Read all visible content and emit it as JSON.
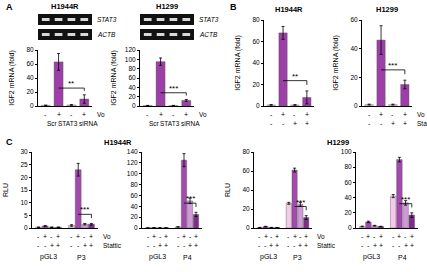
{
  "panel_labels": [
    "A",
    "B",
    "C"
  ],
  "chart_data": [
    {
      "panel": "A",
      "type": "bar",
      "title": "H1944R",
      "y_label": "IGF2 mRNA (fold)",
      "gel_labels": [
        "STAT3",
        "ACTB"
      ],
      "categories": [
        null,
        null,
        null,
        null
      ],
      "values": [
        1,
        63,
        1.5,
        10
      ],
      "errors": [
        0.3,
        12,
        0.5,
        6
      ],
      "colors": [
        "#f3d4ee",
        "#9c3fa6",
        "#f3d4ee",
        "#9c3fa6"
      ],
      "ylim": [
        0,
        80
      ],
      "yticks": [
        0,
        20,
        40,
        60,
        80
      ],
      "conditions": [
        {
          "label": "Vo",
          "values": [
            "-",
            "+",
            "-",
            "+"
          ]
        }
      ],
      "group_labels": [
        {
          "label": "Scr",
          "bars": [
            0,
            1
          ]
        },
        {
          "label": "STAT3 siRNA",
          "bars": [
            2,
            3
          ]
        }
      ],
      "significance": [
        {
          "bars": [
            1,
            3
          ],
          "label": "**"
        }
      ]
    },
    {
      "panel": "A",
      "type": "bar",
      "title": "H1299",
      "y_label": "IGF2 mRNA (fold)",
      "gel_labels": [
        "STAT3",
        "ACTB"
      ],
      "categories": [
        null,
        null,
        null,
        null
      ],
      "values": [
        1,
        95,
        1,
        12
      ],
      "errors": [
        0.3,
        8,
        0.3,
        2
      ],
      "colors": [
        "#f3d4ee",
        "#9c3fa6",
        "#f3d4ee",
        "#9c3fa6"
      ],
      "ylim": [
        0,
        120
      ],
      "yticks": [
        0,
        20,
        40,
        60,
        80,
        100,
        120
      ],
      "conditions": [
        {
          "label": "Vo",
          "values": [
            "-",
            "+",
            "-",
            "+"
          ]
        }
      ],
      "group_labels": [
        {
          "label": "Scr",
          "bars": [
            0,
            1
          ]
        },
        {
          "label": "STAT3 siRNA",
          "bars": [
            2,
            3
          ]
        }
      ],
      "significance": [
        {
          "bars": [
            1,
            3
          ],
          "label": "***"
        }
      ]
    },
    {
      "panel": "B",
      "type": "bar",
      "title": "H1944R",
      "y_label": "IGF2 mRNA (fold)",
      "categories": [
        null,
        null,
        null,
        null
      ],
      "values": [
        1,
        68,
        1,
        8
      ],
      "errors": [
        0.3,
        6,
        0.3,
        6
      ],
      "colors": [
        "#f3d4ee",
        "#9c3fa6",
        "#f3d4ee",
        "#9c3fa6"
      ],
      "ylim": [
        0,
        80
      ],
      "yticks": [
        0,
        20,
        40,
        60,
        80
      ],
      "conditions": [
        {
          "values": [
            "-",
            "+",
            "-",
            "+"
          ]
        },
        {
          "values": [
            "-",
            "-",
            "+",
            "+"
          ]
        }
      ],
      "significance": [
        {
          "bars": [
            1,
            3
          ],
          "label": "**"
        }
      ]
    },
    {
      "panel": "B",
      "type": "bar",
      "title": "H1299",
      "y_label": "IGF2 mRNA (fold)",
      "categories": [
        null,
        null,
        null,
        null
      ],
      "values": [
        1,
        46,
        1,
        15
      ],
      "errors": [
        0.3,
        10,
        0.3,
        3
      ],
      "colors": [
        "#f3d4ee",
        "#9c3fa6",
        "#f3d4ee",
        "#9c3fa6"
      ],
      "ylim": [
        0,
        60
      ],
      "yticks": [
        0,
        20,
        40,
        60
      ],
      "conditions": [
        {
          "label": "Vo",
          "values": [
            "-",
            "+",
            "-",
            "+"
          ]
        },
        {
          "label": "Stattic",
          "values": [
            "-",
            "-",
            "+",
            "+"
          ]
        }
      ],
      "significance": [
        {
          "bars": [
            1,
            3
          ],
          "label": "***"
        }
      ]
    },
    {
      "panel": "C",
      "type": "bar",
      "title": "H1944R",
      "y_label": "RLU",
      "categories": [
        "pGL3",
        "P3"
      ],
      "series": [
        {
          "color": "#f4c9ea",
          "values": [
            0.3,
            1
          ],
          "errors": [
            0.1,
            0.3
          ]
        },
        {
          "color": "#a24aae",
          "values": [
            0.8,
            23
          ],
          "errors": [
            0.2,
            2.5
          ]
        },
        {
          "color": "#cf9bd6",
          "values": [
            0.3,
            1.5
          ],
          "errors": [
            0.1,
            0.3
          ]
        },
        {
          "color": "#7d2e8a",
          "values": [
            0.3,
            1.5
          ],
          "errors": [
            0.1,
            0.3
          ]
        }
      ],
      "ylim": [
        0,
        30
      ],
      "yticks": [
        0,
        5,
        10,
        15,
        20,
        25,
        30
      ],
      "conditions": [
        {
          "label": "Vo",
          "values": [
            "-",
            "+",
            "-",
            "+"
          ]
        },
        {
          "label": "Stattic",
          "values": [
            "-",
            "-",
            "+",
            "+"
          ]
        }
      ],
      "significance": [
        {
          "category": 1,
          "series": [
            1,
            3
          ],
          "label": "***"
        }
      ]
    },
    {
      "panel": "C",
      "type": "bar",
      "categories": [
        "pGL3",
        "P4"
      ],
      "series": [
        {
          "color": "#f4c9ea",
          "values": [
            0.3,
            2
          ],
          "errors": [
            0.1,
            0.5
          ]
        },
        {
          "color": "#a24aae",
          "values": [
            0.5,
            125
          ],
          "errors": [
            0.1,
            12
          ]
        },
        {
          "color": "#cf9bd6",
          "values": [
            0.3,
            50
          ],
          "errors": [
            0.1,
            5
          ]
        },
        {
          "color": "#7d2e8a",
          "values": [
            0.3,
            25
          ],
          "errors": [
            0.1,
            4
          ]
        }
      ],
      "ylim": [
        0,
        140
      ],
      "yticks": [
        0,
        20,
        40,
        60,
        80,
        100,
        120,
        140
      ],
      "conditions": [
        {
          "values": [
            "-",
            "+",
            "-",
            "+"
          ]
        },
        {
          "values": [
            "-",
            "-",
            "+",
            "+"
          ]
        }
      ],
      "significance": [
        {
          "category": 1,
          "series": [
            1,
            3
          ],
          "label": "***"
        }
      ]
    },
    {
      "panel": "C",
      "type": "bar",
      "title": "H1299",
      "y_label": "RLU",
      "categories": [
        "pGL3",
        "P3"
      ],
      "series": [
        {
          "color": "#f4c9ea",
          "values": [
            0.5,
            26
          ],
          "errors": [
            0.2,
            1
          ]
        },
        {
          "color": "#a24aae",
          "values": [
            1.5,
            61
          ],
          "errors": [
            0.3,
            2
          ]
        },
        {
          "color": "#cf9bd6",
          "values": [
            0.5,
            25
          ],
          "errors": [
            0.2,
            2
          ]
        },
        {
          "color": "#7d2e8a",
          "values": [
            0.5,
            11
          ],
          "errors": [
            0.1,
            2
          ]
        }
      ],
      "ylim": [
        0,
        80
      ],
      "yticks": [
        0,
        20,
        40,
        60,
        80
      ],
      "conditions": [
        {
          "label": "Vo",
          "values": [
            "-",
            "+",
            "-",
            "+"
          ]
        },
        {
          "label": "Stattic",
          "values": [
            "-",
            "-",
            "+",
            "+"
          ]
        }
      ],
      "significance": [
        {
          "category": 1,
          "series": [
            1,
            3
          ],
          "label": "***"
        }
      ]
    },
    {
      "panel": "C",
      "type": "bar",
      "categories": [
        "pGL3",
        "P4"
      ],
      "series": [
        {
          "color": "#f4c9ea",
          "values": [
            2,
            42
          ],
          "errors": [
            0.5,
            2
          ]
        },
        {
          "color": "#a24aae",
          "values": [
            8,
            90
          ],
          "errors": [
            1,
            3
          ]
        },
        {
          "color": "#cf9bd6",
          "values": [
            3,
            33
          ],
          "errors": [
            0.5,
            3
          ]
        },
        {
          "color": "#7d2e8a",
          "values": [
            2,
            17
          ],
          "errors": [
            0.3,
            3
          ]
        }
      ],
      "ylim": [
        0,
        100
      ],
      "yticks": [
        0,
        20,
        40,
        60,
        80,
        100
      ],
      "conditions": [
        {
          "values": [
            "-",
            "+",
            "-",
            "+"
          ]
        },
        {
          "values": [
            "-",
            "-",
            "+",
            "+"
          ]
        }
      ],
      "significance": [
        {
          "category": 1,
          "series": [
            1,
            3
          ],
          "label": "***"
        }
      ]
    }
  ]
}
